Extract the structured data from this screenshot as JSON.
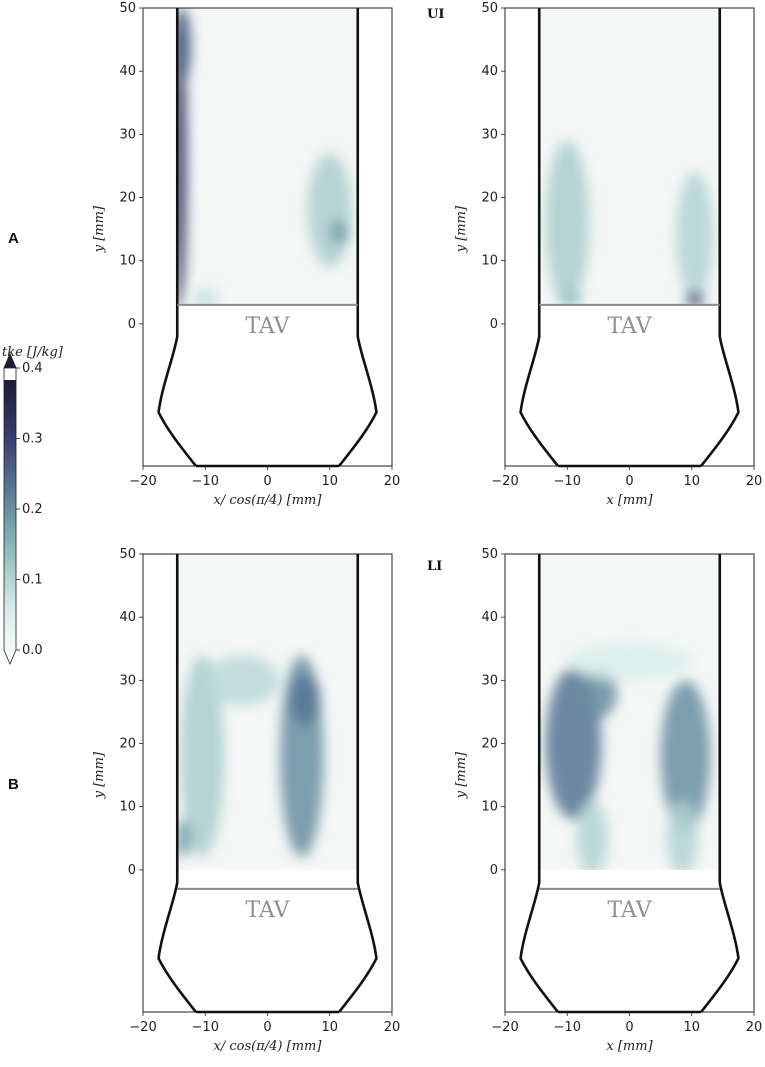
{
  "chart_data": {
    "type": "heatmap",
    "variable": "tke",
    "colorbar": {
      "label": "tke [J/kg]",
      "range": [
        0.0,
        0.4
      ],
      "ticks": [
        "0.0",
        "0.1",
        "0.2",
        "0.3",
        "0.4"
      ],
      "colors": [
        "#ffffff",
        "#d6ebe8",
        "#8fbcbb",
        "#5a7f98",
        "#3a3a6e",
        "#1e1c36"
      ]
    },
    "row_labels": [
      "A",
      "B"
    ],
    "panels": [
      {
        "row": "A",
        "corner_label": "",
        "xlabel": "x/ cos(π/4) [mm]",
        "ylabel": "y [mm]",
        "xlim": [
          -20,
          20
        ],
        "ylim": [
          -22.5,
          50
        ],
        "xticks": [
          "−20",
          "−10",
          "0",
          "10",
          "20"
        ],
        "yticks": [
          "0",
          "10",
          "20",
          "30",
          "40",
          "50"
        ],
        "annotation": "TAV",
        "valve_y": 3,
        "hotspots": [
          {
            "x": -14.2,
            "y": 26,
            "rx": 1.2,
            "ry": 24,
            "tke": 0.35
          },
          {
            "x": -13.8,
            "y": 44,
            "rx": 1.5,
            "ry": 6,
            "tke": 0.28
          },
          {
            "x": 10,
            "y": 18,
            "rx": 3.5,
            "ry": 9,
            "tke": 0.13
          },
          {
            "x": 11.5,
            "y": 14.5,
            "rx": 1.5,
            "ry": 2,
            "tke": 0.2
          },
          {
            "x": -10,
            "y": 4,
            "rx": 2,
            "ry": 1.5,
            "tke": 0.1
          }
        ]
      },
      {
        "row": "A",
        "corner_label": "UI",
        "xlabel": "x [mm]",
        "ylabel": "y [mm]",
        "xlim": [
          -20,
          20
        ],
        "ylim": [
          -22.5,
          50
        ],
        "xticks": [
          "−20",
          "−10",
          "0",
          "10",
          "20"
        ],
        "yticks": [
          "0",
          "10",
          "20",
          "30",
          "40",
          "50"
        ],
        "annotation": "TAV",
        "valve_y": 3,
        "hotspots": [
          {
            "x": -10,
            "y": 16,
            "rx": 3.5,
            "ry": 13,
            "tke": 0.13
          },
          {
            "x": 10.5,
            "y": 14,
            "rx": 3,
            "ry": 10,
            "tke": 0.12
          },
          {
            "x": 10.5,
            "y": 4,
            "rx": 1.5,
            "ry": 1.2,
            "tke": 0.3
          },
          {
            "x": -9.5,
            "y": 4,
            "rx": 2,
            "ry": 1.2,
            "tke": 0.15
          }
        ]
      },
      {
        "row": "B",
        "corner_label": "",
        "xlabel": "x/ cos(π/4) [mm]",
        "ylabel": "y [mm]",
        "xlim": [
          -20,
          20
        ],
        "ylim": [
          -22.5,
          50
        ],
        "xticks": [
          "−20",
          "−10",
          "0",
          "10",
          "20"
        ],
        "yticks": [
          "0",
          "10",
          "20",
          "30",
          "40",
          "50"
        ],
        "annotation": "TAV",
        "valve_y": -3,
        "hotspots": [
          {
            "x": -10.5,
            "y": 18,
            "rx": 3.5,
            "ry": 16,
            "tke": 0.13
          },
          {
            "x": 5.5,
            "y": 18,
            "rx": 3.5,
            "ry": 16,
            "tke": 0.22
          },
          {
            "x": 6,
            "y": 27,
            "rx": 2.5,
            "ry": 4,
            "tke": 0.25
          },
          {
            "x": -4,
            "y": 30,
            "rx": 6,
            "ry": 4,
            "tke": 0.11
          },
          {
            "x": -13.5,
            "y": 5,
            "rx": 1.3,
            "ry": 3,
            "tke": 0.2
          }
        ]
      },
      {
        "row": "B",
        "corner_label": "LI",
        "xlabel": "x [mm]",
        "ylabel": "y [mm]",
        "xlim": [
          -20,
          20
        ],
        "ylim": [
          -22.5,
          50
        ],
        "xticks": [
          "−20",
          "−10",
          "0",
          "10",
          "20"
        ],
        "yticks": [
          "0",
          "10",
          "20",
          "30",
          "40",
          "50"
        ],
        "annotation": "TAV",
        "valve_y": -3,
        "hotspots": [
          {
            "x": -9,
            "y": 20,
            "rx": 4.5,
            "ry": 12,
            "tke": 0.25
          },
          {
            "x": -5,
            "y": 28,
            "rx": 3,
            "ry": 4,
            "tke": 0.22
          },
          {
            "x": 9,
            "y": 18,
            "rx": 4,
            "ry": 12,
            "tke": 0.22
          },
          {
            "x": -6,
            "y": 5,
            "rx": 2.5,
            "ry": 6,
            "tke": 0.12
          },
          {
            "x": 8.5,
            "y": 5,
            "rx": 2.5,
            "ry": 6,
            "tke": 0.12
          },
          {
            "x": 0,
            "y": 33,
            "rx": 10,
            "ry": 3,
            "tke": 0.07
          }
        ]
      }
    ]
  }
}
